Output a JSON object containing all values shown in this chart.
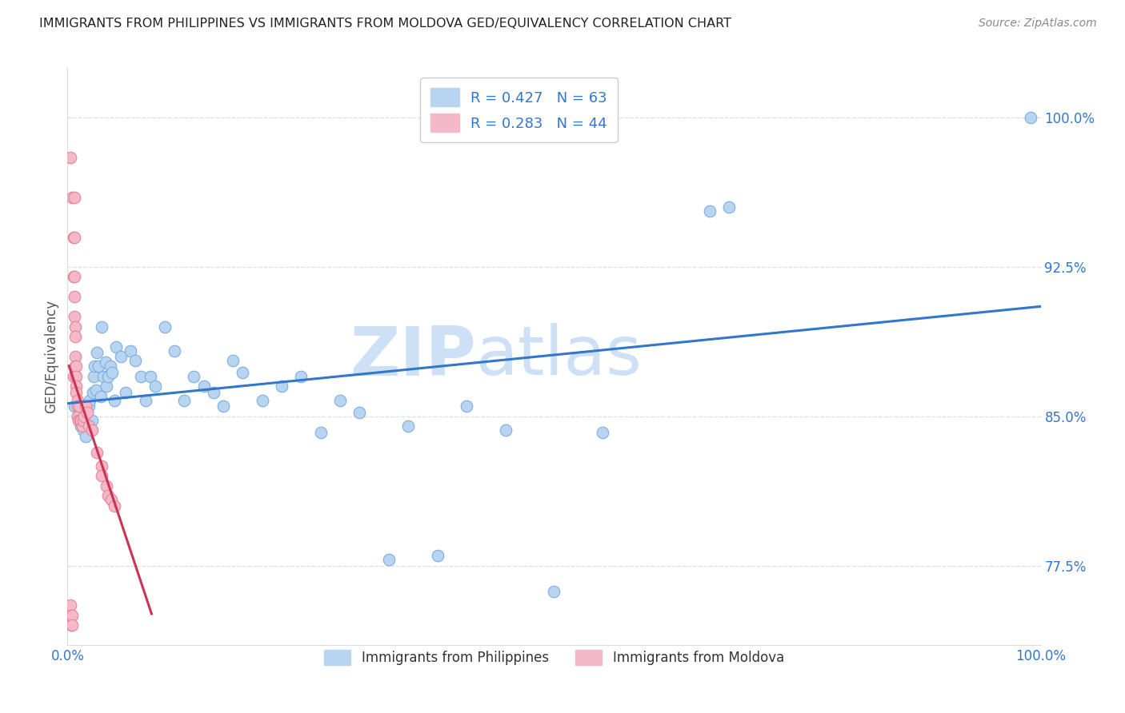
{
  "title": "IMMIGRANTS FROM PHILIPPINES VS IMMIGRANTS FROM MOLDOVA GED/EQUIVALENCY CORRELATION CHART",
  "source": "Source: ZipAtlas.com",
  "ylabel": "GED/Equivalency",
  "xlim": [
    0,
    1
  ],
  "ylim": [
    0.735,
    1.025
  ],
  "yticks": [
    0.775,
    0.85,
    0.925,
    1.0
  ],
  "ytick_labels": [
    "77.5%",
    "85.0%",
    "92.5%",
    "100.0%"
  ],
  "xticks": [
    0.0,
    0.2,
    0.4,
    0.6,
    0.8,
    1.0
  ],
  "xtick_labels": [
    "0.0%",
    "",
    "",
    "",
    "",
    "100.0%"
  ],
  "blue_R": 0.427,
  "blue_N": 63,
  "pink_R": 0.283,
  "pink_N": 44,
  "blue_color": "#b8d4f0",
  "blue_edge_color": "#7aaee0",
  "blue_line_color": "#3377cc",
  "pink_color": "#f5b8c8",
  "pink_edge_color": "#e08898",
  "pink_line_color": "#cc3355",
  "blue_label": "Immigrants from Philippines",
  "pink_label": "Immigrants from Moldova",
  "watermark": "ZIPatlas",
  "watermark_color": "#cde0f5",
  "title_color": "#222222",
  "axis_label_color": "#3377cc",
  "grid_color": "#dddddd",
  "blue_x": [
    0.007,
    0.01,
    0.012,
    0.014,
    0.015,
    0.016,
    0.017,
    0.018,
    0.019,
    0.02,
    0.021,
    0.022,
    0.023,
    0.025,
    0.026,
    0.027,
    0.028,
    0.029,
    0.03,
    0.032,
    0.034,
    0.035,
    0.037,
    0.039,
    0.04,
    0.042,
    0.044,
    0.046,
    0.048,
    0.05,
    0.055,
    0.06,
    0.065,
    0.07,
    0.075,
    0.08,
    0.085,
    0.09,
    0.1,
    0.11,
    0.12,
    0.13,
    0.14,
    0.15,
    0.16,
    0.17,
    0.18,
    0.2,
    0.22,
    0.24,
    0.26,
    0.28,
    0.3,
    0.33,
    0.35,
    0.38,
    0.41,
    0.45,
    0.5,
    0.55,
    0.66,
    0.68,
    0.99
  ],
  "blue_y": [
    0.855,
    0.85,
    0.852,
    0.845,
    0.848,
    0.843,
    0.855,
    0.85,
    0.84,
    0.855,
    0.847,
    0.855,
    0.858,
    0.848,
    0.862,
    0.87,
    0.875,
    0.863,
    0.882,
    0.875,
    0.86,
    0.895,
    0.87,
    0.877,
    0.865,
    0.87,
    0.875,
    0.872,
    0.858,
    0.885,
    0.88,
    0.862,
    0.883,
    0.878,
    0.87,
    0.858,
    0.87,
    0.865,
    0.895,
    0.883,
    0.858,
    0.87,
    0.865,
    0.862,
    0.855,
    0.878,
    0.872,
    0.858,
    0.865,
    0.87,
    0.842,
    0.858,
    0.852,
    0.778,
    0.845,
    0.78,
    0.855,
    0.843,
    0.762,
    0.842,
    0.953,
    0.955,
    1.0
  ],
  "pink_x": [
    0.003,
    0.003,
    0.004,
    0.004,
    0.005,
    0.005,
    0.005,
    0.006,
    0.006,
    0.006,
    0.007,
    0.007,
    0.007,
    0.007,
    0.007,
    0.008,
    0.008,
    0.008,
    0.008,
    0.009,
    0.009,
    0.009,
    0.009,
    0.01,
    0.01,
    0.01,
    0.011,
    0.012,
    0.013,
    0.014,
    0.015,
    0.016,
    0.017,
    0.019,
    0.02,
    0.022,
    0.025,
    0.03,
    0.035,
    0.035,
    0.04,
    0.042,
    0.045,
    0.048
  ],
  "pink_y": [
    0.98,
    0.755,
    0.75,
    0.745,
    0.96,
    0.75,
    0.745,
    0.94,
    0.92,
    0.87,
    0.96,
    0.94,
    0.92,
    0.91,
    0.9,
    0.895,
    0.89,
    0.88,
    0.875,
    0.875,
    0.87,
    0.865,
    0.862,
    0.858,
    0.855,
    0.85,
    0.848,
    0.855,
    0.848,
    0.848,
    0.845,
    0.848,
    0.85,
    0.855,
    0.852,
    0.845,
    0.843,
    0.832,
    0.825,
    0.82,
    0.815,
    0.81,
    0.808,
    0.805
  ]
}
